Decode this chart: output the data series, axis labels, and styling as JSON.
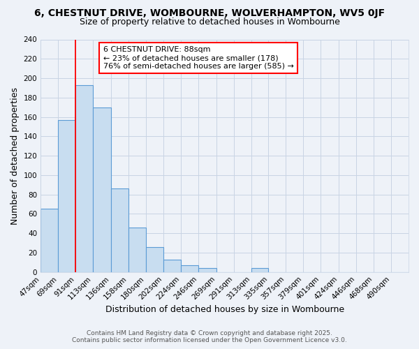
{
  "title": "6, CHESTNUT DRIVE, WOMBOURNE, WOLVERHAMPTON, WV5 0JF",
  "subtitle": "Size of property relative to detached houses in Wombourne",
  "xlabel": "Distribution of detached houses by size in Wombourne",
  "ylabel": "Number of detached properties",
  "bar_labels": [
    "47sqm",
    "69sqm",
    "91sqm",
    "113sqm",
    "136sqm",
    "158sqm",
    "180sqm",
    "202sqm",
    "224sqm",
    "246sqm",
    "269sqm",
    "291sqm",
    "313sqm",
    "335sqm",
    "357sqm",
    "379sqm",
    "401sqm",
    "424sqm",
    "446sqm",
    "468sqm",
    "490sqm"
  ],
  "bar_values": [
    65,
    157,
    193,
    170,
    86,
    46,
    26,
    13,
    7,
    4,
    0,
    0,
    4,
    0,
    0,
    0,
    0,
    0,
    0,
    0,
    0
  ],
  "bar_edges": [
    47,
    69,
    91,
    113,
    136,
    158,
    180,
    202,
    224,
    246,
    269,
    291,
    313,
    335,
    357,
    379,
    401,
    424,
    446,
    468,
    490
  ],
  "bar_color": "#c8ddf0",
  "bar_edge_color": "#5b9bd5",
  "bar_linewidth": 0.8,
  "red_line_x": 91,
  "ylim": [
    0,
    240
  ],
  "yticks": [
    0,
    20,
    40,
    60,
    80,
    100,
    120,
    140,
    160,
    180,
    200,
    220,
    240
  ],
  "annotation_line1": "6 CHESTNUT DRIVE: 88sqm",
  "annotation_line2": "← 23% of detached houses are smaller (178)",
  "annotation_line3": "76% of semi-detached houses are larger (585) →",
  "footer_line1": "Contains HM Land Registry data © Crown copyright and database right 2025.",
  "footer_line2": "Contains public sector information licensed under the Open Government Licence v3.0.",
  "bg_color": "#eef2f8",
  "grid_color": "#c8d4e4",
  "title_fontsize": 10,
  "subtitle_fontsize": 9,
  "axis_label_fontsize": 9,
  "tick_fontsize": 7.5,
  "annotation_fontsize": 8,
  "footer_fontsize": 6.5
}
